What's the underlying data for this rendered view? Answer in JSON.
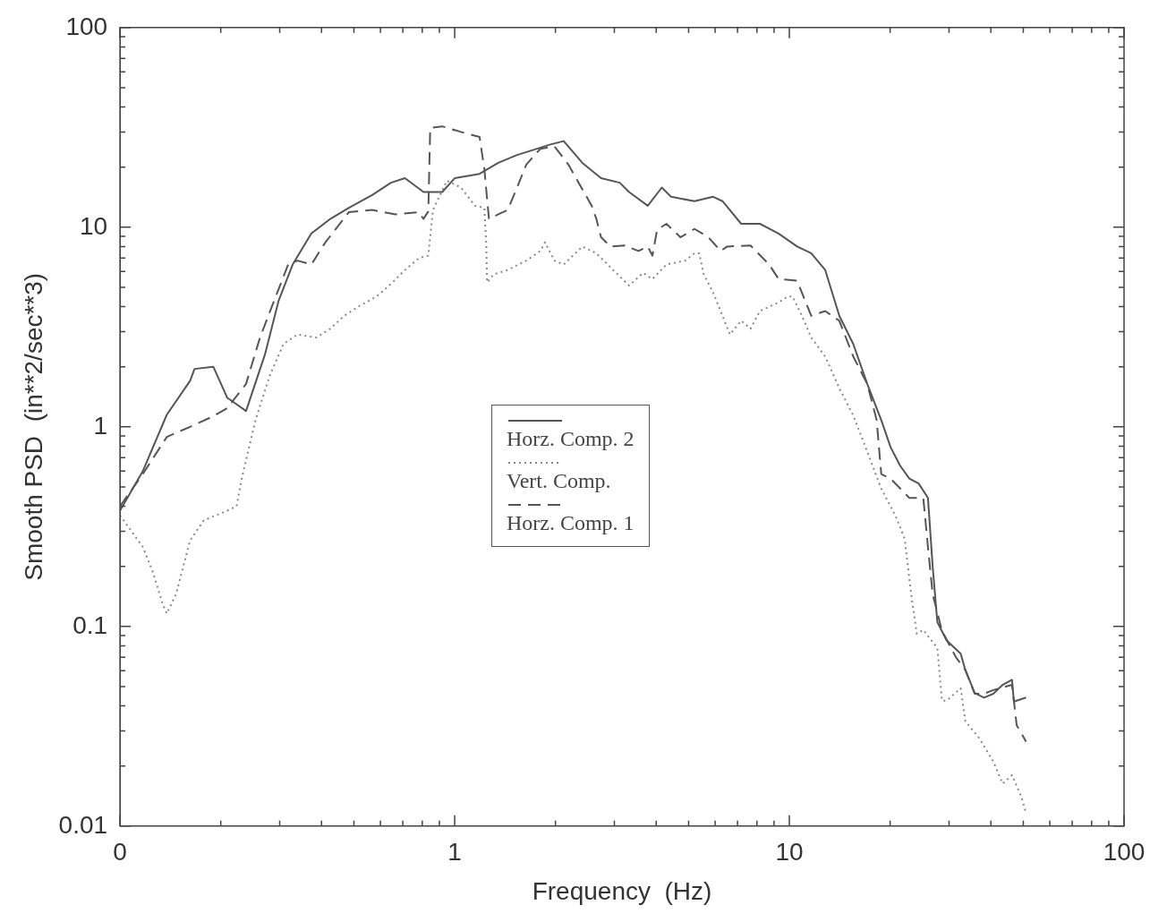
{
  "chart_data": {
    "type": "line",
    "xlabel": "Frequency  (Hz)",
    "ylabel": "Smooth PSD  (in**2/sec**3)",
    "log": "xy",
    "grid": false,
    "legend": "center",
    "marker": "none",
    "xlim": [
      0.1,
      100
    ],
    "ylim": [
      0.01,
      100
    ],
    "xticks": [
      {
        "value": 0.1,
        "label": "0"
      },
      {
        "value": 0.2,
        "label": null
      },
      {
        "value": 0.3,
        "label": null
      },
      {
        "value": 0.4,
        "label": null
      },
      {
        "value": 0.5,
        "label": null
      },
      {
        "value": 0.6,
        "label": null
      },
      {
        "value": 0.7,
        "label": null
      },
      {
        "value": 0.8,
        "label": null
      },
      {
        "value": 0.9,
        "label": null
      },
      1,
      {
        "value": 2,
        "label": null
      },
      {
        "value": 3,
        "label": null
      },
      {
        "value": 4,
        "label": null
      },
      {
        "value": 5,
        "label": null
      },
      {
        "value": 6,
        "label": null
      },
      {
        "value": 7,
        "label": null
      },
      {
        "value": 8,
        "label": null
      },
      {
        "value": 9,
        "label": null
      },
      10,
      {
        "value": 20,
        "label": null
      },
      {
        "value": 30,
        "label": null
      },
      {
        "value": 40,
        "label": null
      },
      {
        "value": 50,
        "label": null
      },
      {
        "value": 60,
        "label": null
      },
      {
        "value": 70,
        "label": null
      },
      {
        "value": 80,
        "label": null
      },
      {
        "value": 90,
        "label": null
      },
      100
    ],
    "yticks": [
      0.01,
      {
        "value": 0.02,
        "label": null
      },
      {
        "value": 0.03,
        "label": null
      },
      {
        "value": 0.04,
        "label": null
      },
      {
        "value": 0.05,
        "label": null
      },
      {
        "value": 0.06,
        "label": null
      },
      {
        "value": 0.07,
        "label": null
      },
      {
        "value": 0.08,
        "label": null
      },
      {
        "value": 0.09,
        "label": null
      },
      0.1,
      {
        "value": 0.2,
        "label": null
      },
      {
        "value": 0.3,
        "label": null
      },
      {
        "value": 0.4,
        "label": null
      },
      {
        "value": 0.5,
        "label": null
      },
      {
        "value": 0.6,
        "label": null
      },
      {
        "value": 0.7,
        "label": null
      },
      {
        "value": 0.8,
        "label": null
      },
      {
        "value": 0.9,
        "label": null
      },
      1,
      {
        "value": 2,
        "label": null
      },
      {
        "value": 3,
        "label": null
      },
      {
        "value": 4,
        "label": null
      },
      {
        "value": 5,
        "label": null
      },
      {
        "value": 6,
        "label": null
      },
      {
        "value": 7,
        "label": null
      },
      {
        "value": 8,
        "label": null
      },
      {
        "value": 9,
        "label": null
      },
      10,
      {
        "value": 20,
        "label": null
      },
      {
        "value": 30,
        "label": null
      },
      {
        "value": 40,
        "label": null
      },
      {
        "value": 50,
        "label": null
      },
      {
        "value": 60,
        "label": null
      },
      {
        "value": 70,
        "label": null
      },
      {
        "value": 80,
        "label": null
      },
      {
        "value": 90,
        "label": null
      },
      100
    ],
    "series": [
      {
        "name": "Horz. Comp. 2",
        "color": "#555555",
        "line_style": "solid",
        "x": [
          0.1,
          0.117,
          0.138,
          0.162,
          0.167,
          0.19,
          0.209,
          0.238,
          0.271,
          0.298,
          0.328,
          0.373,
          0.425,
          0.483,
          0.567,
          0.645,
          0.71,
          0.807,
          0.918,
          1.0,
          1.187,
          1.35,
          1.536,
          1.746,
          1.922,
          2.117,
          2.407,
          2.737,
          3.113,
          3.319,
          3.775,
          4.157,
          4.433,
          5.206,
          5.92,
          6.313,
          7.178,
          8.163,
          9.282,
          10.55,
          11.62,
          12.8,
          14.1,
          15.52,
          17.09,
          18.82,
          20.07,
          21.41,
          22.83,
          24.34,
          25.95,
          26.8,
          27.68,
          29.51,
          32.5,
          33.56,
          35.79,
          38.15,
          40.69,
          43.39,
          46.27,
          46.87,
          50.95
        ],
        "values": [
          0.38,
          0.6,
          1.15,
          1.7,
          1.95,
          2.0,
          1.4,
          1.2,
          2.3,
          4.3,
          6.5,
          9.3,
          11,
          12.5,
          14.5,
          16.7,
          17.6,
          15,
          15,
          17.6,
          18.5,
          21,
          23,
          24.6,
          25.9,
          27,
          21,
          17.6,
          16.7,
          15,
          12.8,
          15.8,
          14.2,
          13.5,
          14.2,
          13.5,
          10.4,
          10.4,
          9.3,
          8.0,
          7.4,
          6.1,
          3.6,
          2.6,
          1.64,
          1.08,
          0.79,
          0.64,
          0.55,
          0.52,
          0.44,
          0.2,
          0.105,
          0.085,
          0.073,
          0.0605,
          0.0464,
          0.044,
          0.046,
          0.051,
          0.054,
          0.042,
          0.044
        ]
      },
      {
        "name": "Vert.  Comp.",
        "color": "#888888",
        "line_style": "dotted",
        "x": [
          0.1,
          0.117,
          0.125,
          0.134,
          0.138,
          0.147,
          0.162,
          0.178,
          0.209,
          0.223,
          0.231,
          0.254,
          0.28,
          0.308,
          0.339,
          0.386,
          0.425,
          0.468,
          0.515,
          0.585,
          0.645,
          0.71,
          0.782,
          0.834,
          0.861,
          0.948,
          1.044,
          1.15,
          1.226,
          1.242,
          1.25,
          1.308,
          1.44,
          1.637,
          1.803,
          1.862,
          1.986,
          2.117,
          2.407,
          2.651,
          2.919,
          3.319,
          3.656,
          3.898,
          4.292,
          4.881,
          5.206,
          5.376,
          5.551,
          5.92,
          6.313,
          6.645,
          7.178,
          7.655,
          8.163,
          9.282,
          9.9,
          10.22,
          10.9,
          11.62,
          12.8,
          14.1,
          15.52,
          17.09,
          18.82,
          20.73,
          22.11,
          23.12,
          24.03,
          25.13,
          27.68,
          28.58,
          29.51,
          32.5,
          33.56,
          36.96,
          40.69,
          43.39,
          46.27,
          49.34,
          50.95
        ],
        "values": [
          0.36,
          0.25,
          0.19,
          0.13,
          0.116,
          0.145,
          0.27,
          0.34,
          0.38,
          0.4,
          0.55,
          1.08,
          1.8,
          2.6,
          2.9,
          2.8,
          3.1,
          3.6,
          4.0,
          4.5,
          5.2,
          6.1,
          7.0,
          7.2,
          12.2,
          17.1,
          15.8,
          12.8,
          12.5,
          8.4,
          5.3,
          5.8,
          6.1,
          6.8,
          7.6,
          8.4,
          6.8,
          6.5,
          8.0,
          7.4,
          6.3,
          5.1,
          5.9,
          5.5,
          6.5,
          6.8,
          7.4,
          7.4,
          5.8,
          4.7,
          3.6,
          2.9,
          3.4,
          3.1,
          3.8,
          4.2,
          4.5,
          4.5,
          3.6,
          2.8,
          2.25,
          1.56,
          1.14,
          0.75,
          0.49,
          0.36,
          0.275,
          0.145,
          0.092,
          0.096,
          0.078,
          0.0425,
          0.0425,
          0.049,
          0.0335,
          0.0275,
          0.021,
          0.0163,
          0.018,
          0.014,
          0.0116
        ]
      },
      {
        "name": "Horz. Comp. 1",
        "color": "#555555",
        "line_style": "dashed",
        "x": [
          0.1,
          0.117,
          0.138,
          0.162,
          0.19,
          0.209,
          0.238,
          0.262,
          0.289,
          0.318,
          0.339,
          0.373,
          0.411,
          0.483,
          0.567,
          0.666,
          0.782,
          0.807,
          0.834,
          0.845,
          0.918,
          1.044,
          1.187,
          1.226,
          1.266,
          1.35,
          1.44,
          1.536,
          1.637,
          1.803,
          1.986,
          2.186,
          2.567,
          2.651,
          2.737,
          2.919,
          3.215,
          3.54,
          3.775,
          3.898,
          4.025,
          4.292,
          4.727,
          5.206,
          5.732,
          6.232,
          6.518,
          7.655,
          8.704,
          9.282,
          10.55,
          10.9,
          11.62,
          12.8,
          14.1,
          15.52,
          17.09,
          18.23,
          18.82,
          20.07,
          22.83,
          25.13,
          25.95,
          26.8,
          28.58,
          31.47,
          33.56,
          35.79,
          38.15,
          40.69,
          46.27,
          47.78,
          50.95
        ],
        "values": [
          0.4,
          0.58,
          0.89,
          1.0,
          1.13,
          1.24,
          1.64,
          2.8,
          4.3,
          6.5,
          6.8,
          6.5,
          8.4,
          11.9,
          12.2,
          11.6,
          11.9,
          11,
          12,
          31.4,
          32,
          30,
          28.3,
          19.6,
          11,
          11.6,
          12.2,
          15.8,
          20.6,
          24.7,
          25.4,
          20.6,
          12.8,
          11,
          8.9,
          8.0,
          8.1,
          7.6,
          8,
          7.2,
          9.7,
          10.4,
          8.9,
          9.8,
          8.9,
          7.6,
          8.0,
          8.1,
          6.5,
          5.5,
          5.4,
          4.7,
          3.6,
          3.8,
          3.4,
          2.25,
          1.64,
          1.08,
          0.58,
          0.55,
          0.44,
          0.44,
          0.25,
          0.145,
          0.095,
          0.07,
          0.0605,
          0.046,
          0.046,
          0.048,
          0.051,
          0.032,
          0.0265
        ]
      }
    ]
  }
}
